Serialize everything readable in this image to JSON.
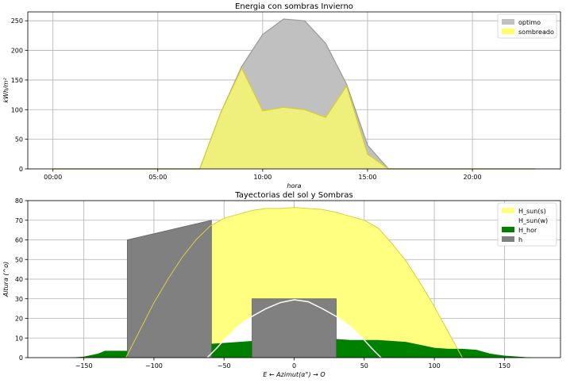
{
  "chart_data": [
    {
      "type": "area",
      "title": "Energia con sombras Invierno",
      "xlabel": "hora",
      "ylabel": "kWh/m²",
      "grid": true,
      "legend": "top-right",
      "xlim": [
        -1.2,
        24.2
      ],
      "ylim": [
        0,
        265
      ],
      "xticks": [
        0,
        5,
        10,
        15,
        20
      ],
      "xtick_labels": [
        "00:00",
        "05:00",
        "10:00",
        "15:00",
        "20:00"
      ],
      "yticks": [
        0,
        50,
        100,
        150,
        200,
        250
      ],
      "ytick_labels": [
        "0",
        "50",
        "100",
        "150",
        "200",
        "250"
      ],
      "x": [
        0,
        1,
        2,
        3,
        4,
        5,
        6,
        7,
        8,
        9,
        10,
        11,
        12,
        13,
        14,
        15,
        16,
        17,
        18,
        19,
        20,
        21,
        22,
        23
      ],
      "series": [
        {
          "name": "optimo",
          "color": "#c0c0c0",
          "values": [
            0,
            0,
            0,
            0,
            0,
            0,
            0,
            0,
            95,
            173,
            227,
            253,
            250,
            212,
            143,
            40,
            0,
            0,
            0,
            0,
            0,
            0,
            0,
            0
          ]
        },
        {
          "name": "sombreado",
          "color": "#ffff66",
          "values": [
            0,
            0,
            0,
            0,
            0,
            0,
            0,
            0,
            95,
            170,
            98,
            104,
            100,
            87,
            140,
            25,
            0,
            0,
            0,
            0,
            0,
            0,
            0,
            0
          ]
        }
      ]
    },
    {
      "type": "area",
      "title": "Tayectorias del sol y Sombras",
      "xlabel": "E ← Azimut(α°) → O",
      "ylabel": "Altura (^o)",
      "grid": true,
      "legend": "top-right",
      "xlim": [
        -190,
        190
      ],
      "ylim": [
        0,
        80
      ],
      "xticks": [
        -150,
        -100,
        -50,
        0,
        50,
        100,
        150
      ],
      "xtick_labels": [
        "−150",
        "−100",
        "−50",
        "0",
        "50",
        "100",
        "150"
      ],
      "yticks": [
        0,
        10,
        20,
        30,
        40,
        50,
        60,
        70,
        80
      ],
      "ytick_labels": [
        "0",
        "10",
        "20",
        "30",
        "40",
        "50",
        "60",
        "70",
        "80"
      ],
      "series": [
        {
          "name": "H_sun(s)",
          "color": "#ffff80",
          "x": [
            -120,
            -110,
            -100,
            -90,
            -80,
            -70,
            -60,
            -50,
            -40,
            -30,
            -20,
            -10,
            0,
            10,
            20,
            30,
            40,
            50,
            60,
            70,
            80,
            90,
            100,
            110,
            120
          ],
          "y": [
            0,
            14,
            28,
            40,
            51,
            60,
            67,
            71,
            73,
            75,
            76,
            76,
            76.5,
            76,
            75.5,
            74,
            72,
            70,
            66,
            58,
            49,
            38,
            26,
            13,
            0
          ]
        },
        {
          "name": "H_sun(w)",
          "color": "#ffffff",
          "x": [
            -62,
            -55,
            -50,
            -40,
            -30,
            -20,
            -10,
            0,
            10,
            20,
            30,
            40,
            50,
            55,
            62
          ],
          "y": [
            0,
            5,
            9,
            16,
            21,
            25,
            28,
            29.5,
            28.5,
            25,
            21,
            16,
            9,
            5,
            0
          ]
        },
        {
          "name": "H_hor",
          "color": "#008000",
          "x": [
            -180,
            -160,
            -150,
            -140,
            -135,
            -120,
            -100,
            -90,
            -80,
            -70,
            -60,
            -50,
            -40,
            -30,
            -20,
            -15,
            -10,
            0,
            10,
            20,
            30,
            40,
            50,
            60,
            70,
            80,
            90,
            100,
            110,
            120,
            130,
            140,
            150,
            160,
            170,
            180
          ],
          "y": [
            0,
            0,
            0.5,
            2,
            3.5,
            3.5,
            3.5,
            3.5,
            4.5,
            5.5,
            7,
            7.5,
            8,
            8.5,
            9,
            10,
            9.5,
            9.5,
            9.5,
            9.5,
            9.5,
            9,
            9,
            9,
            8.5,
            8,
            6.5,
            5,
            4.5,
            4.5,
            4,
            2,
            1,
            0.5,
            0,
            0
          ]
        },
        {
          "name": "h",
          "color": "#808080",
          "shapes": [
            {
              "x": [
                -119,
                -59,
                -59,
                -119
              ],
              "y": [
                60,
                70,
                0,
                0
              ]
            },
            {
              "x": [
                -30,
                30,
                30,
                -30
              ],
              "y": [
                30,
                30,
                0,
                0
              ]
            }
          ]
        }
      ]
    }
  ]
}
